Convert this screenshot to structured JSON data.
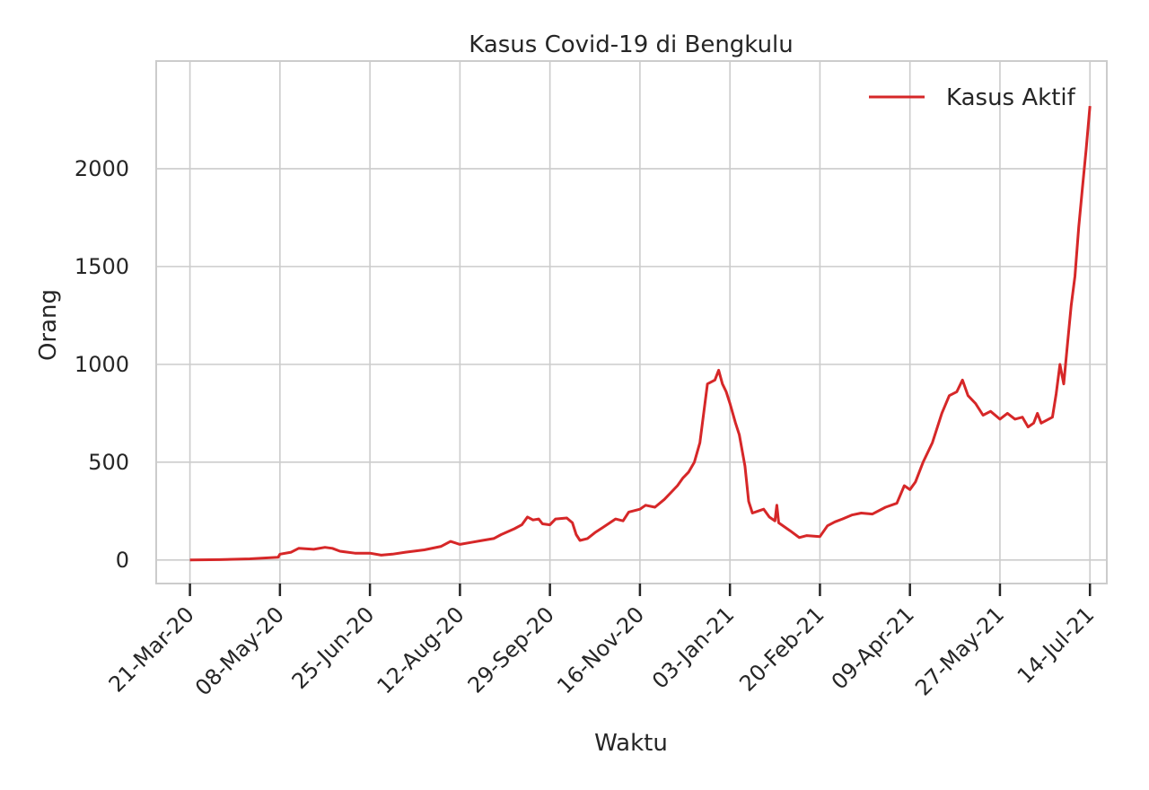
{
  "chart_data": {
    "type": "line",
    "title": "Kasus Covid-19 di Bengkulu",
    "xlabel": "Waktu",
    "ylabel": "Orang",
    "x_type": "date",
    "x_range": [
      "2020-03-03",
      "2021-07-23"
    ],
    "ylim": [
      -120,
      2550
    ],
    "yticks": [
      0,
      500,
      1000,
      1500,
      2000
    ],
    "xticks": [
      {
        "date": "2020-03-21",
        "label": "21-Mar-20"
      },
      {
        "date": "2020-05-08",
        "label": "08-May-20"
      },
      {
        "date": "2020-06-25",
        "label": "25-Jun-20"
      },
      {
        "date": "2020-08-12",
        "label": "12-Aug-20"
      },
      {
        "date": "2020-09-29",
        "label": "29-Sep-20"
      },
      {
        "date": "2020-11-16",
        "label": "16-Nov-20"
      },
      {
        "date": "2021-01-03",
        "label": "03-Jan-21"
      },
      {
        "date": "2021-02-20",
        "label": "20-Feb-21"
      },
      {
        "date": "2021-04-09",
        "label": "09-Apr-21"
      },
      {
        "date": "2021-05-27",
        "label": "27-May-21"
      },
      {
        "date": "2021-07-14",
        "label": "14-Jul-21"
      }
    ],
    "grid": true,
    "legend_position": "top-right",
    "series": [
      {
        "name": "Kasus Aktif",
        "color": "#d62728",
        "points": [
          [
            "2020-03-21",
            0
          ],
          [
            "2020-04-06",
            2
          ],
          [
            "2020-04-22",
            6
          ],
          [
            "2020-05-07",
            14
          ],
          [
            "2020-05-08",
            30
          ],
          [
            "2020-05-14",
            40
          ],
          [
            "2020-05-18",
            60
          ],
          [
            "2020-05-26",
            55
          ],
          [
            "2020-06-01",
            65
          ],
          [
            "2020-06-05",
            60
          ],
          [
            "2020-06-09",
            45
          ],
          [
            "2020-06-17",
            35
          ],
          [
            "2020-06-25",
            35
          ],
          [
            "2020-07-01",
            25
          ],
          [
            "2020-07-07",
            30
          ],
          [
            "2020-07-14",
            40
          ],
          [
            "2020-07-24",
            52
          ],
          [
            "2020-08-02",
            70
          ],
          [
            "2020-08-07",
            95
          ],
          [
            "2020-08-12",
            80
          ],
          [
            "2020-08-18",
            90
          ],
          [
            "2020-08-24",
            100
          ],
          [
            "2020-08-30",
            110
          ],
          [
            "2020-09-03",
            130
          ],
          [
            "2020-09-10",
            160
          ],
          [
            "2020-09-14",
            180
          ],
          [
            "2020-09-17",
            220
          ],
          [
            "2020-09-20",
            205
          ],
          [
            "2020-09-23",
            210
          ],
          [
            "2020-09-25",
            185
          ],
          [
            "2020-09-29",
            180
          ],
          [
            "2020-10-02",
            210
          ],
          [
            "2020-10-08",
            215
          ],
          [
            "2020-10-11",
            190
          ],
          [
            "2020-10-13",
            130
          ],
          [
            "2020-10-15",
            100
          ],
          [
            "2020-10-19",
            110
          ],
          [
            "2020-10-23",
            140
          ],
          [
            "2020-10-27",
            165
          ],
          [
            "2020-11-03",
            210
          ],
          [
            "2020-11-07",
            200
          ],
          [
            "2020-11-10",
            245
          ],
          [
            "2020-11-16",
            260
          ],
          [
            "2020-11-19",
            280
          ],
          [
            "2020-11-24",
            270
          ],
          [
            "2020-11-29",
            310
          ],
          [
            "2020-12-03",
            350
          ],
          [
            "2020-12-06",
            380
          ],
          [
            "2020-12-09",
            420
          ],
          [
            "2020-12-12",
            450
          ],
          [
            "2020-12-15",
            500
          ],
          [
            "2020-12-18",
            600
          ],
          [
            "2020-12-20",
            750
          ],
          [
            "2020-12-22",
            900
          ],
          [
            "2020-12-26",
            920
          ],
          [
            "2020-12-28",
            970
          ],
          [
            "2020-12-30",
            900
          ],
          [
            "2021-01-01",
            860
          ],
          [
            "2021-01-03",
            800
          ],
          [
            "2021-01-06",
            700
          ],
          [
            "2021-01-08",
            640
          ],
          [
            "2021-01-11",
            480
          ],
          [
            "2021-01-13",
            300
          ],
          [
            "2021-01-15",
            240
          ],
          [
            "2021-01-18",
            250
          ],
          [
            "2021-01-21",
            260
          ],
          [
            "2021-01-24",
            220
          ],
          [
            "2021-01-27",
            200
          ],
          [
            "2021-01-28",
            280
          ],
          [
            "2021-01-29",
            190
          ],
          [
            "2021-02-04",
            150
          ],
          [
            "2021-02-09",
            115
          ],
          [
            "2021-02-13",
            125
          ],
          [
            "2021-02-20",
            120
          ],
          [
            "2021-02-24",
            175
          ],
          [
            "2021-02-28",
            195
          ],
          [
            "2021-03-04",
            210
          ],
          [
            "2021-03-09",
            230
          ],
          [
            "2021-03-14",
            240
          ],
          [
            "2021-03-20",
            235
          ],
          [
            "2021-03-27",
            270
          ],
          [
            "2021-04-02",
            290
          ],
          [
            "2021-04-06",
            380
          ],
          [
            "2021-04-09",
            360
          ],
          [
            "2021-04-12",
            400
          ],
          [
            "2021-04-16",
            500
          ],
          [
            "2021-04-21",
            600
          ],
          [
            "2021-04-26",
            750
          ],
          [
            "2021-04-30",
            840
          ],
          [
            "2021-05-04",
            860
          ],
          [
            "2021-05-07",
            920
          ],
          [
            "2021-05-10",
            840
          ],
          [
            "2021-05-14",
            800
          ],
          [
            "2021-05-18",
            740
          ],
          [
            "2021-05-22",
            760
          ],
          [
            "2021-05-27",
            720
          ],
          [
            "2021-05-31",
            750
          ],
          [
            "2021-06-04",
            720
          ],
          [
            "2021-06-08",
            730
          ],
          [
            "2021-06-11",
            680
          ],
          [
            "2021-06-14",
            700
          ],
          [
            "2021-06-16",
            750
          ],
          [
            "2021-06-18",
            700
          ],
          [
            "2021-06-22",
            720
          ],
          [
            "2021-06-24",
            730
          ],
          [
            "2021-06-26",
            850
          ],
          [
            "2021-06-28",
            1000
          ],
          [
            "2021-06-30",
            900
          ],
          [
            "2021-07-02",
            1100
          ],
          [
            "2021-07-04",
            1300
          ],
          [
            "2021-07-06",
            1450
          ],
          [
            "2021-07-08",
            1700
          ],
          [
            "2021-07-10",
            1900
          ],
          [
            "2021-07-12",
            2100
          ],
          [
            "2021-07-14",
            2320
          ]
        ]
      }
    ]
  }
}
